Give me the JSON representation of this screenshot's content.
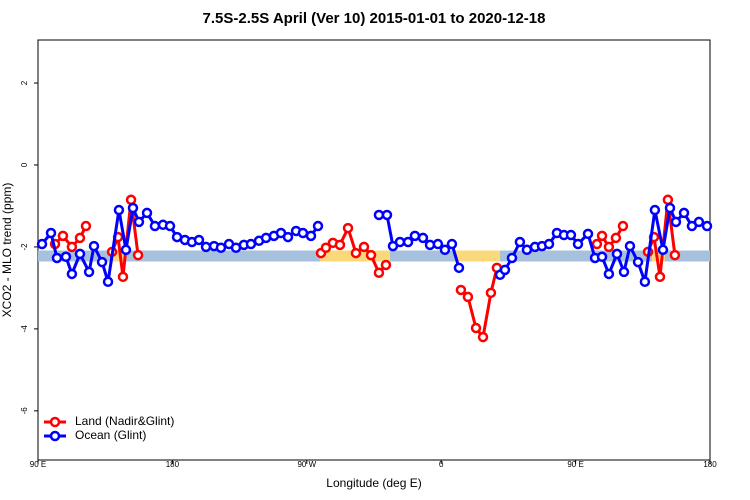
{
  "chart_data": {
    "type": "line",
    "title": "7.5S-2.5S April (Ver 10)   2015-01-01 to 2020-12-18",
    "xlabel": "Longitude (deg E)",
    "ylabel": "XCO2 - MLO trend (ppm)",
    "xlim": [
      90,
      540
    ],
    "ylim": [
      -7.2,
      3.05
    ],
    "xticks": [
      {
        "value": 90,
        "label": "90 E"
      },
      {
        "value": 180,
        "label": "180"
      },
      {
        "value": 270,
        "label": "90 W"
      },
      {
        "value": 360,
        "label": "0"
      },
      {
        "value": 450,
        "label": "90 E"
      },
      {
        "value": 540,
        "label": "180"
      }
    ],
    "yticks": [
      2,
      0,
      -2,
      -4,
      -6
    ],
    "legend": "bottom-left",
    "band": {
      "value": -2.22,
      "segments": [
        {
          "xlim": [
            90,
            140.2
          ],
          "color": "#a7c0de"
        },
        {
          "xlim": [
            140.2,
            148.3
          ],
          "color": "#fbd97a"
        },
        {
          "xlim": [
            148.3,
            278.8
          ],
          "color": "#a7c0de"
        },
        {
          "xlim": [
            278.8,
            325.7
          ],
          "color": "#fbd97a"
        },
        {
          "xlim": [
            325.7,
            369.2
          ],
          "color": "#a7c0de"
        },
        {
          "xlim": [
            369.2,
            399.4
          ],
          "color": "#fbd97a"
        },
        {
          "xlim": [
            399.4,
            501.2
          ],
          "color": "#a7c0de"
        },
        {
          "xlim": [
            501.2,
            509.9
          ],
          "color": "#fbd97a"
        },
        {
          "xlim": [
            509.9,
            540
          ],
          "color": "#a7c0de"
        }
      ]
    },
    "series": [
      {
        "name": "Land (Nadir&Glint)",
        "color": "#ff0000",
        "x": [
          101.4,
          106.7,
          112.7,
          118.1,
          122.1,
          null,
          139.6,
          143.6,
          146.9,
          152.3,
          157.0,
          null,
          279.5,
          282.8,
          287.5,
          292.2,
          297.6,
          302.9,
          308.3,
          313.0,
          318.3,
          323.0,
          null,
          373.2,
          377.9,
          383.3,
          388.0,
          393.3,
          397.3,
          null,
          464.3,
          467.7,
          472.3,
          477.0,
          481.7,
          null,
          498.5,
          502.5,
          506.5,
          511.8,
          516.5
        ],
        "values": [
          -1.93,
          -1.73,
          -2.0,
          -1.78,
          -1.49,
          null,
          -2.12,
          -1.76,
          -2.73,
          -0.85,
          -2.2,
          null,
          -2.15,
          -2.02,
          -1.9,
          -1.95,
          -1.54,
          -2.15,
          -2.0,
          -2.2,
          -2.63,
          -2.44,
          null,
          -3.05,
          -3.22,
          -3.98,
          -4.2,
          -3.12,
          -2.51,
          null,
          -1.93,
          -1.73,
          -2.0,
          -1.78,
          -1.49,
          null,
          -2.12,
          -1.76,
          -2.73,
          -0.85,
          -2.2
        ]
      },
      {
        "name": "Ocean (Glint)",
        "color": "#0000ff",
        "x": [
          92.7,
          98.7,
          102.7,
          108.7,
          112.7,
          118.1,
          124.2,
          127.5,
          132.9,
          136.9,
          144.2,
          148.9,
          153.6,
          157.6,
          163.0,
          168.3,
          173.7,
          178.4,
          183.1,
          188.4,
          193.1,
          197.8,
          202.5,
          207.9,
          212.5,
          217.9,
          222.6,
          227.9,
          232.6,
          238.0,
          242.7,
          248.0,
          252.7,
          257.4,
          262.8,
          267.4,
          272.8,
          277.5,
          null,
          318.3,
          323.7,
          327.7,
          332.4,
          337.8,
          342.4,
          347.8,
          352.5,
          357.8,
          362.5,
          367.2,
          371.9,
          null,
          399.4,
          402.7,
          407.4,
          412.7,
          417.4,
          422.8,
          427.5,
          432.2,
          437.5,
          442.2,
          446.9,
          451.6,
          458.3,
          463.0,
          467.7,
          472.3,
          477.7,
          482.4,
          486.4,
          491.8,
          496.4,
          503.1,
          508.5,
          513.2,
          517.2,
          522.6,
          527.9,
          532.6,
          538.0
        ],
        "values": [
          -1.93,
          -1.66,
          -2.27,
          -2.24,
          -2.66,
          -2.17,
          -2.61,
          -1.98,
          -2.37,
          -2.85,
          -1.1,
          -2.07,
          -1.05,
          -1.39,
          -1.17,
          -1.49,
          -1.46,
          -1.49,
          -1.76,
          -1.83,
          -1.88,
          -1.83,
          -2.0,
          -1.98,
          -2.02,
          -1.93,
          -2.02,
          -1.95,
          -1.93,
          -1.85,
          -1.78,
          -1.73,
          -1.66,
          -1.76,
          -1.61,
          -1.66,
          -1.73,
          -1.49,
          null,
          -1.22,
          -1.22,
          -1.98,
          -1.88,
          -1.88,
          -1.73,
          -1.78,
          -1.95,
          -1.93,
          -2.07,
          -1.93,
          -2.51,
          null,
          -2.68,
          -2.56,
          -2.27,
          -1.88,
          -2.07,
          -2.0,
          -1.98,
          -1.93,
          -1.66,
          -1.71,
          -1.71,
          -1.93,
          -1.68,
          -2.27,
          -2.24,
          -2.66,
          -2.17,
          -2.61,
          -1.98,
          -2.37,
          -2.85,
          -1.1,
          -2.07,
          -1.05,
          -1.39,
          -1.17,
          -1.49,
          -1.39,
          -1.49
        ]
      }
    ]
  }
}
